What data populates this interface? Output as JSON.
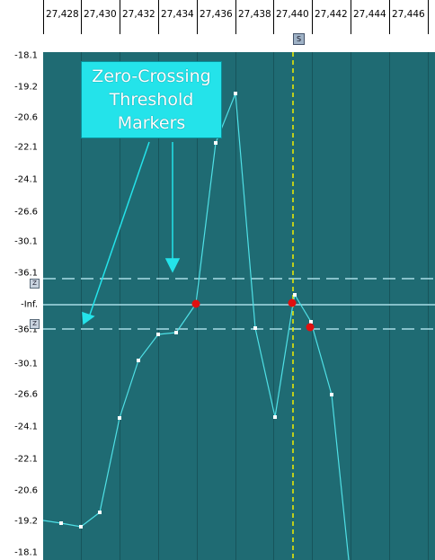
{
  "ruler": {
    "labels": [
      "27,428",
      "27,430",
      "27,432",
      "27,434",
      "27,436",
      "27,438",
      "27,440",
      "27,442",
      "27,444",
      "27,446"
    ]
  },
  "cursor_marker": "S",
  "y_axis": {
    "labels": [
      "-18.1",
      "-19.2",
      "-20.6",
      "-22.1",
      "-24.1",
      "-26.6",
      "-30.1",
      "-36.1",
      "-Inf.",
      "-36.1",
      "-30.1",
      "-26.6",
      "-24.1",
      "-22.1",
      "-20.6",
      "-19.2",
      "-18.1"
    ],
    "threshold_marker": "Z"
  },
  "callout": {
    "line1": "Zero-Crossing",
    "line2": "Threshold",
    "line3": "Markers"
  },
  "colors": {
    "plot_background": "#1f6b73",
    "waveform": "#4fe0e6",
    "threshold_line": "#a9dde6",
    "cursor": "#f2f000",
    "zero_crossing_point": "#e01010",
    "callout_fill": "#24e3ea"
  }
}
